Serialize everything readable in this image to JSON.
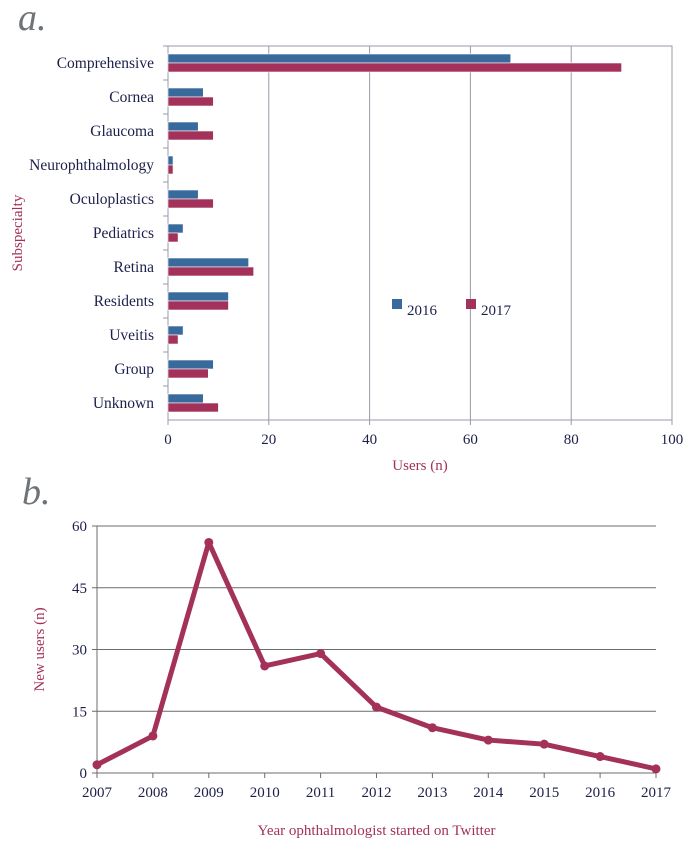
{
  "panels": {
    "a_label": "a.",
    "b_label": "b."
  },
  "chart_data": [
    {
      "type": "bar",
      "orientation": "horizontal",
      "categories": [
        "Comprehensive",
        "Cornea",
        "Glaucoma",
        "Neurophthalmology",
        "Oculoplastics",
        "Pediatrics",
        "Retina",
        "Residents",
        "Uveitis",
        "Group",
        "Unknown"
      ],
      "series": [
        {
          "name": "2016",
          "color": "#386a9c",
          "values": [
            68,
            7,
            6,
            1,
            6,
            3,
            16,
            12,
            3,
            9,
            7
          ]
        },
        {
          "name": "2017",
          "color": "#a3315a",
          "values": [
            90,
            9,
            9,
            1,
            9,
            2,
            17,
            12,
            2,
            8,
            10
          ]
        }
      ],
      "xlabel": "Users (n)",
      "ylabel": "Subspecialty",
      "xlim": [
        0,
        100
      ],
      "xticks": [
        "0",
        "20",
        "40",
        "60",
        "80",
        "100"
      ],
      "grid": "vertical",
      "legend": "middle-right"
    },
    {
      "type": "line",
      "x": [
        "2007",
        "2008",
        "2009",
        "2010",
        "2011",
        "2012",
        "2013",
        "2014",
        "2015",
        "2016",
        "2017"
      ],
      "series": [
        {
          "color": "#a3315a",
          "values": [
            2,
            9,
            56,
            26,
            29,
            16,
            11,
            8,
            7,
            4,
            1
          ]
        }
      ],
      "xlabel": "Year ophthalmologist started on Twitter",
      "ylabel": "New users (n)",
      "ylim": [
        0,
        60
      ],
      "yticks": [
        "0",
        "15",
        "30",
        "45",
        "60"
      ],
      "grid": "horizontal"
    }
  ]
}
